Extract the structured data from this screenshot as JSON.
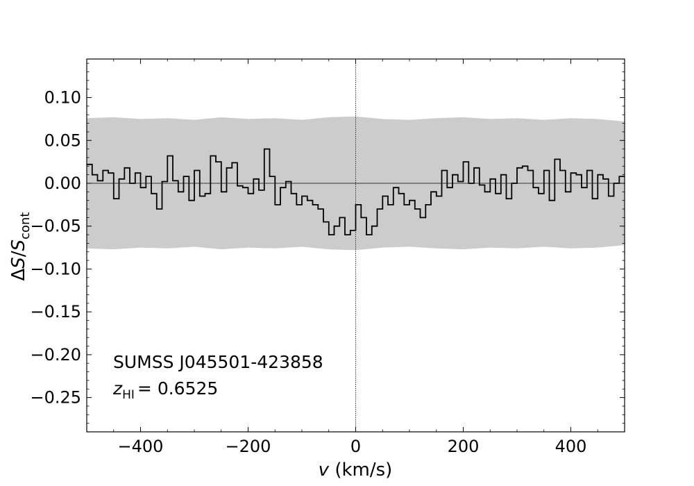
{
  "chart_data": {
    "type": "line",
    "style": "step",
    "xlabel": "v (km/s)",
    "ylabel": "ΔS/S_cont",
    "xlim": [
      -500,
      500
    ],
    "ylim": [
      -0.29,
      0.145
    ],
    "xticks": [
      -400,
      -200,
      0,
      200,
      400
    ],
    "xtick_labels": [
      "−400",
      "−200",
      "0",
      "200",
      "400"
    ],
    "yticks": [
      0.1,
      0.05,
      0.0,
      -0.05,
      -0.1,
      -0.15,
      -0.2,
      -0.25
    ],
    "ytick_labels": [
      "0.10",
      "0.05",
      "0.00",
      "−0.05",
      "−0.10",
      "−0.15",
      "−0.20",
      "−0.25"
    ],
    "grid": false,
    "annotations": {
      "source_name": "SUMSS J045501-423858",
      "redshift_symbol": "z",
      "redshift_subscript": "HI",
      "redshift_value": "= 0.6525"
    },
    "reference_lines": {
      "zero_y": 0.0,
      "zero_x": 0.0
    },
    "colors": {
      "spectrum": "#000000",
      "noise_band": "#cccccc"
    },
    "noise_band": {
      "x": [
        -500,
        -450,
        -400,
        -350,
        -300,
        -250,
        -200,
        -150,
        -100,
        -50,
        0,
        50,
        100,
        150,
        200,
        250,
        300,
        350,
        400,
        450,
        500
      ],
      "upper": [
        0.076,
        0.077,
        0.075,
        0.076,
        0.074,
        0.077,
        0.075,
        0.076,
        0.074,
        0.077,
        0.078,
        0.075,
        0.074,
        0.076,
        0.077,
        0.075,
        0.076,
        0.074,
        0.076,
        0.075,
        0.072
      ],
      "lower": [
        -0.076,
        -0.077,
        -0.075,
        -0.076,
        -0.074,
        -0.077,
        -0.075,
        -0.076,
        -0.074,
        -0.077,
        -0.078,
        -0.075,
        -0.074,
        -0.076,
        -0.077,
        -0.075,
        -0.076,
        -0.074,
        -0.076,
        -0.075,
        -0.072
      ]
    },
    "series": [
      {
        "x": [
          -500,
          -490,
          -480,
          -470,
          -460,
          -450,
          -440,
          -430,
          -420,
          -410,
          -400,
          -390,
          -380,
          -370,
          -360,
          -350,
          -340,
          -330,
          -320,
          -310,
          -300,
          -290,
          -280,
          -270,
          -260,
          -250,
          -240,
          -230,
          -220,
          -210,
          -200,
          -190,
          -180,
          -170,
          -160,
          -150,
          -140,
          -130,
          -120,
          -110,
          -100,
          -90,
          -80,
          -70,
          -60,
          -50,
          -40,
          -30,
          -20,
          -10,
          0,
          10,
          20,
          30,
          40,
          50,
          60,
          70,
          80,
          90,
          100,
          110,
          120,
          130,
          140,
          150,
          160,
          170,
          180,
          190,
          200,
          210,
          220,
          230,
          240,
          250,
          260,
          270,
          280,
          290,
          300,
          310,
          320,
          330,
          340,
          350,
          360,
          370,
          380,
          390,
          400,
          410,
          420,
          430,
          440,
          450,
          460,
          470,
          480,
          490
        ],
        "values": [
          0.022,
          0.01,
          0.003,
          0.015,
          0.012,
          -0.018,
          0.005,
          0.018,
          0.0,
          0.012,
          -0.005,
          0.008,
          -0.012,
          -0.03,
          0.002,
          0.032,
          0.003,
          -0.01,
          0.008,
          -0.02,
          0.015,
          -0.015,
          -0.012,
          0.032,
          0.025,
          -0.01,
          0.018,
          0.024,
          -0.003,
          -0.005,
          -0.012,
          0.005,
          -0.008,
          0.04,
          0.008,
          -0.025,
          -0.005,
          0.002,
          -0.012,
          -0.025,
          -0.015,
          -0.02,
          -0.025,
          -0.03,
          -0.045,
          -0.06,
          -0.05,
          -0.04,
          -0.06,
          -0.055,
          -0.025,
          -0.04,
          -0.06,
          -0.05,
          -0.03,
          -0.015,
          -0.025,
          -0.005,
          -0.012,
          -0.025,
          -0.02,
          -0.03,
          -0.04,
          -0.025,
          -0.01,
          -0.015,
          0.015,
          -0.005,
          0.01,
          0.002,
          0.025,
          0.0,
          0.018,
          -0.002,
          -0.01,
          0.005,
          -0.012,
          0.01,
          -0.018,
          0.0,
          0.018,
          0.02,
          0.015,
          -0.005,
          -0.012,
          0.015,
          -0.02,
          0.028,
          0.015,
          -0.01,
          0.012,
          0.01,
          -0.005,
          0.015,
          -0.018,
          0.01,
          0.005,
          -0.015,
          0.0,
          0.008
        ]
      }
    ]
  }
}
